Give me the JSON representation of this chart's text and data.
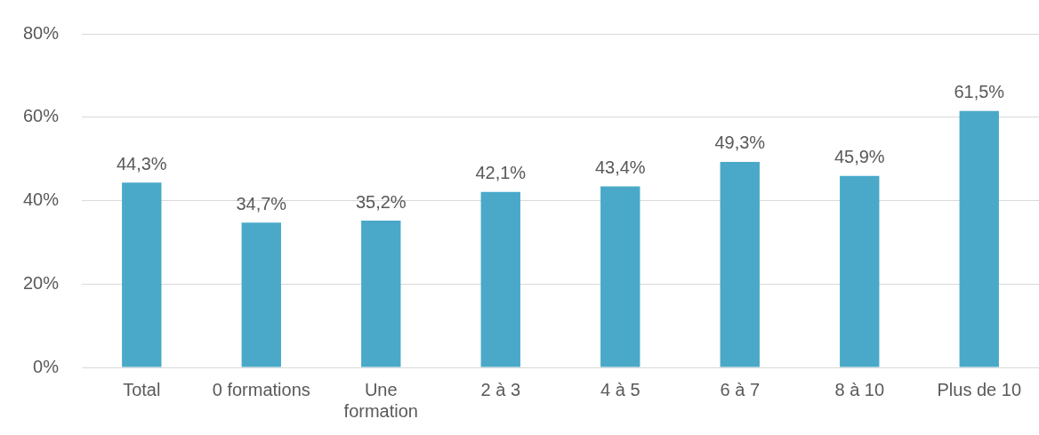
{
  "chart_data": {
    "type": "bar",
    "categories": [
      "Total",
      "0 formations",
      "Une formation",
      "2 à 3",
      "4 à 5",
      "6 à 7",
      "8 à 10",
      "Plus de 10"
    ],
    "values": [
      44.3,
      34.7,
      35.2,
      42.1,
      43.4,
      49.3,
      45.9,
      61.5
    ],
    "value_labels": [
      "44,3%",
      "34,7%",
      "35,2%",
      "42,1%",
      "43,4%",
      "49,3%",
      "45,9%",
      "61,5%"
    ],
    "color": "#4aa9c8",
    "ylim": [
      0,
      80
    ],
    "yticks": [
      {
        "value": 0,
        "label": "0%"
      },
      {
        "value": 20,
        "label": "20%"
      },
      {
        "value": 40,
        "label": "40%"
      },
      {
        "value": 60,
        "label": "60%"
      },
      {
        "value": 80,
        "label": "80%"
      }
    ],
    "grid": "y",
    "legend": false
  }
}
